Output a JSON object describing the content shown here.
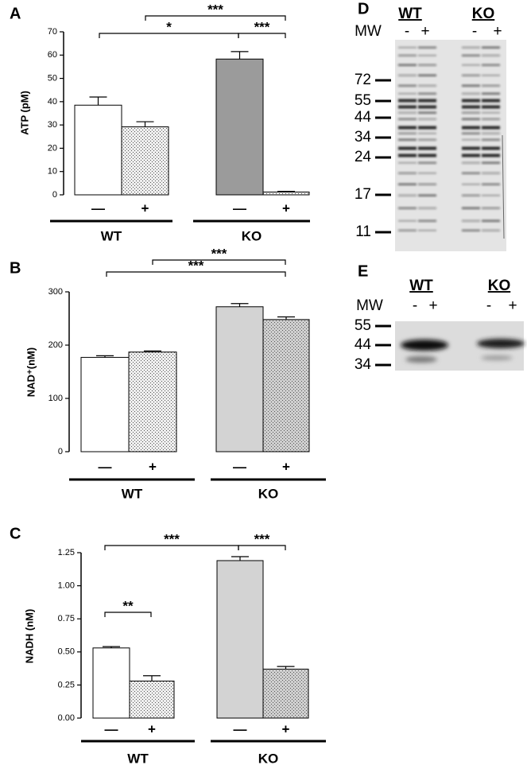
{
  "chart_data": [
    {
      "type": "bar",
      "panel": "A",
      "y_label": "ATP (pM)",
      "categories": [
        "—",
        "+",
        "—",
        "+"
      ],
      "groups": [
        "WT",
        "KO"
      ],
      "values": [
        38.5,
        29.2,
        58.3,
        1.2
      ],
      "errors": [
        3.5,
        2.2,
        3.2,
        0.3
      ],
      "colors": [
        "#ffffff",
        "#eeeeee",
        "#9b9b9b",
        "#f2f2f2"
      ],
      "dotted": [
        false,
        true,
        false,
        true
      ],
      "ylim": [
        0,
        70
      ],
      "yticks": [
        0,
        10,
        20,
        30,
        40,
        50,
        60,
        70
      ],
      "annotations": [
        "*",
        "***",
        "***"
      ]
    },
    {
      "type": "bar",
      "panel": "B",
      "y_label": "NAD⁺(nM)",
      "categories": [
        "—",
        "+",
        "—",
        "+"
      ],
      "groups": [
        "WT",
        "KO"
      ],
      "values": [
        177,
        187,
        272,
        248
      ],
      "errors": [
        3,
        2,
        6,
        5
      ],
      "colors": [
        "#ffffff",
        "#eeeeee",
        "#d3d3d3",
        "#cfcfcf"
      ],
      "dotted": [
        false,
        true,
        false,
        true
      ],
      "ylim": [
        0,
        300
      ],
      "yticks": [
        0,
        100,
        200,
        300
      ],
      "annotations": [
        "***",
        "***"
      ]
    },
    {
      "type": "bar",
      "panel": "C",
      "y_label": "NADH (nM)",
      "categories": [
        "—",
        "+",
        "—",
        "+"
      ],
      "groups": [
        "WT",
        "KO"
      ],
      "values": [
        0.53,
        0.28,
        1.19,
        0.37
      ],
      "errors": [
        0.01,
        0.04,
        0.03,
        0.02
      ],
      "colors": [
        "#ffffff",
        "#eeeeee",
        "#d3d3d3",
        "#cfcfcf"
      ],
      "dotted": [
        false,
        true,
        false,
        true
      ],
      "ylim": [
        0,
        1.25
      ],
      "yticks": [
        {
          "value": 0,
          "label": "0.00"
        },
        {
          "value": 0.25,
          "label": "0.25"
        },
        {
          "value": 0.5,
          "label": "0.50"
        },
        {
          "value": 0.75,
          "label": "0.75"
        },
        {
          "value": 1,
          "label": "1.00"
        },
        {
          "value": 1.25,
          "label": "1.25"
        }
      ],
      "annotations": [
        "***",
        "***",
        "**"
      ]
    }
  ],
  "gels": [
    {
      "panel": "D",
      "groups": [
        "WT",
        "KO"
      ],
      "mw_label": "MW",
      "lanes": [
        "-",
        "+",
        "-",
        "+"
      ],
      "markers": [
        72,
        55,
        44,
        34,
        24,
        17,
        11
      ]
    },
    {
      "panel": "E",
      "groups": [
        "WT",
        "KO"
      ],
      "mw_label": "MW",
      "lanes": [
        "-",
        "+",
        "-",
        "+"
      ],
      "markers": [
        55,
        44,
        34
      ]
    }
  ]
}
